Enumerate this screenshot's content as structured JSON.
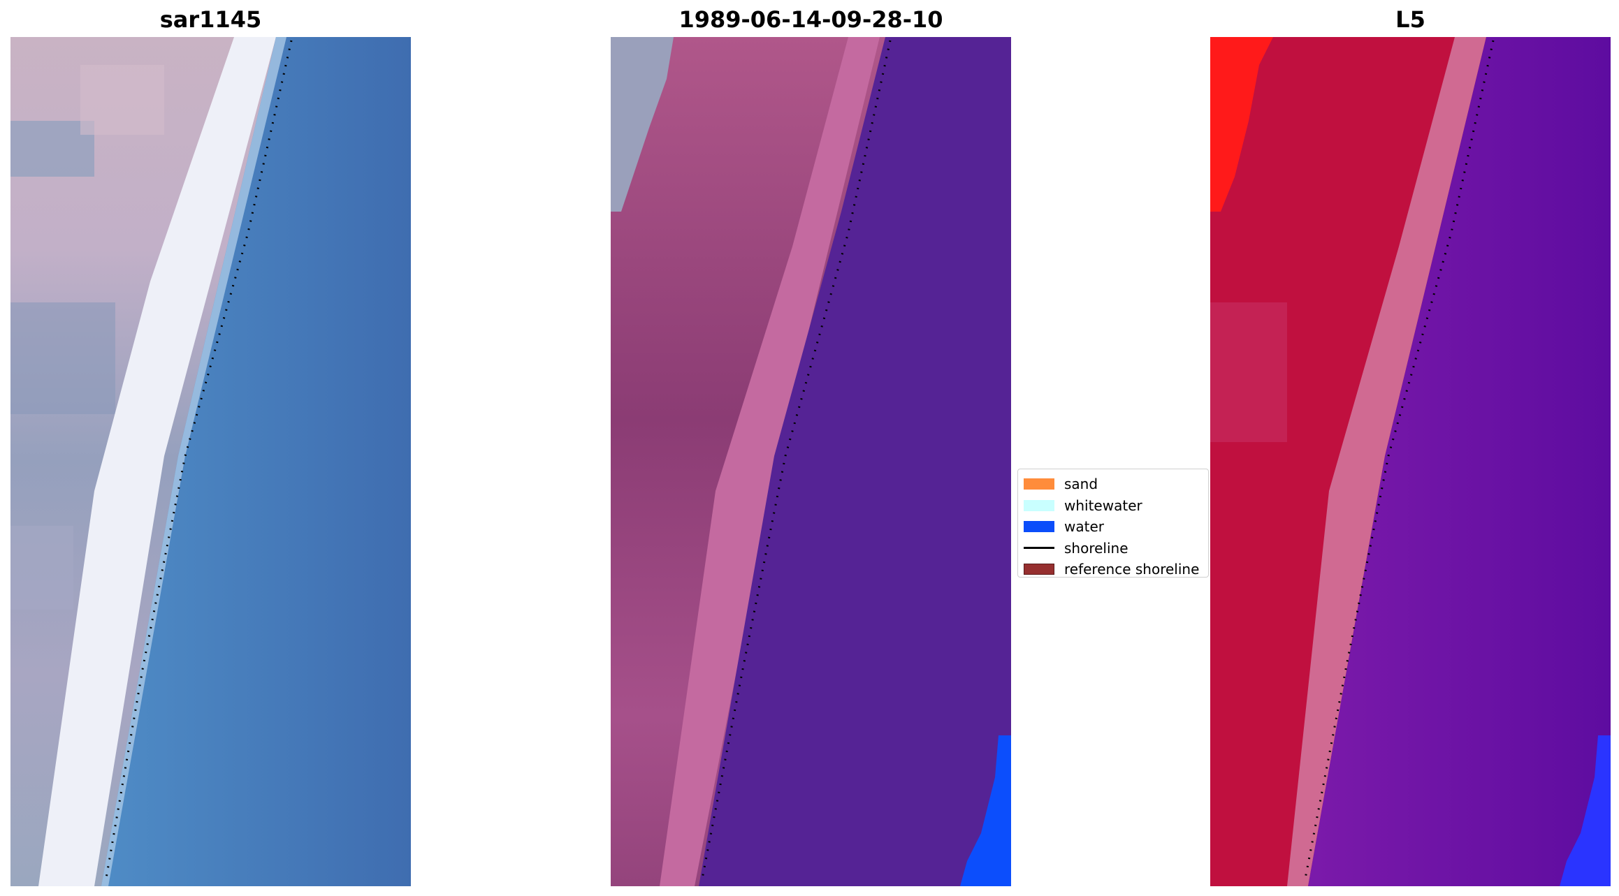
{
  "panels": [
    {
      "title": "sar1145",
      "colors": {
        "land_light": "#cbb8c6",
        "land_dark": "#8e9cb8",
        "beach": "#f3f2f8",
        "water": "#4784c0",
        "water_deep": "#3e6fb3"
      }
    },
    {
      "title": "1989-06-14-09-28-10",
      "colors": {
        "land_light": "#b55a8c",
        "land_dark": "#8a3a73",
        "beach": "#c46aa0",
        "water": "#552395",
        "corner": "#0c4efc",
        "edge": "#9aa0bb"
      }
    },
    {
      "title": "L5",
      "colors": {
        "land_light": "#c8103e",
        "land_dark": "#b80a3c",
        "beach": "#d06a92",
        "water": "#6c12a8",
        "water_deep": "#5a0c9e",
        "corner": "#1030ff",
        "red": "#ff1a1a"
      }
    }
  ],
  "legend": {
    "items": [
      {
        "label": "sand",
        "color": "#ff8c3b",
        "kind": "patch"
      },
      {
        "label": "whitewater",
        "color": "#c9ffff",
        "kind": "patch"
      },
      {
        "label": "water",
        "color": "#0b4dfa",
        "kind": "patch"
      },
      {
        "label": "shoreline",
        "color": "#000000",
        "kind": "line"
      },
      {
        "label": "reference shoreline",
        "color": "#962f2f",
        "kind": "patch"
      }
    ]
  }
}
